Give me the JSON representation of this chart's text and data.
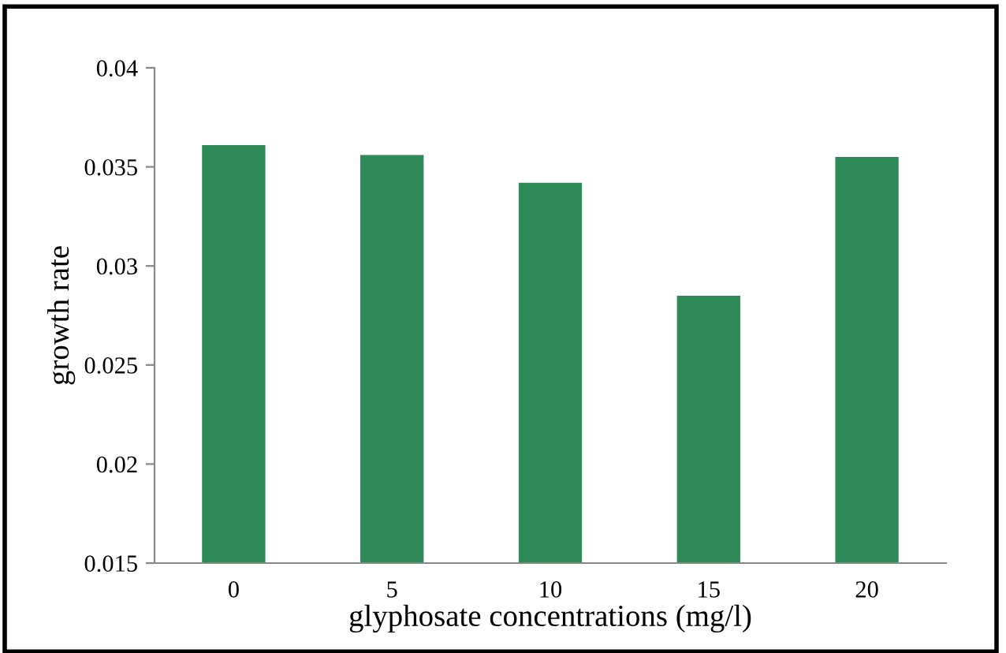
{
  "chart_data": {
    "type": "bar",
    "xlabel": "glyphosate concentrations (mg/l)",
    "ylabel": "growth rate",
    "categories": [
      "0",
      "5",
      "10",
      "15",
      "20"
    ],
    "values": [
      0.0361,
      0.0356,
      0.0342,
      0.0285,
      0.0355
    ],
    "color": "#2e8b57",
    "ylim": [
      0.015,
      0.04
    ],
    "yticks": [
      0.015,
      0.02,
      0.025,
      0.03,
      0.035,
      0.04
    ],
    "grid": false,
    "legend": false
  }
}
